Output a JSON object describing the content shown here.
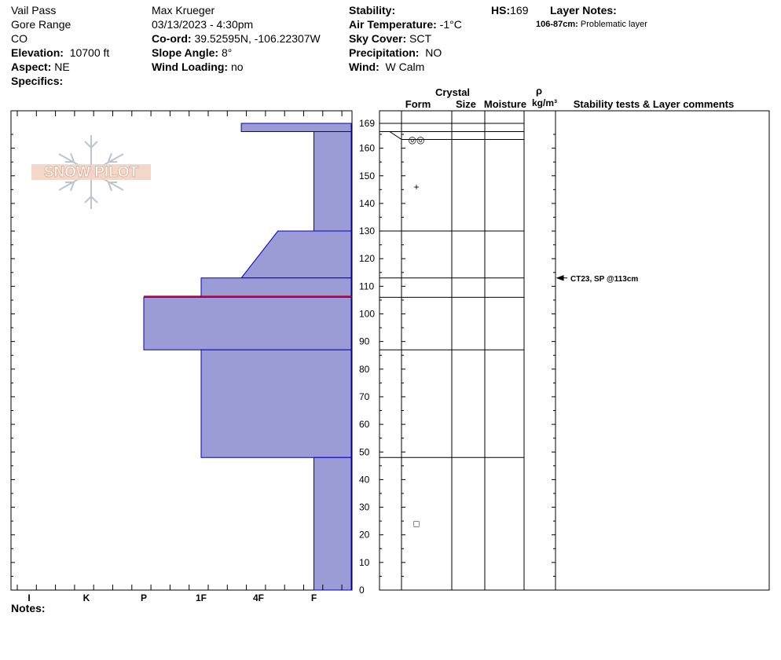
{
  "site": {
    "location": "Vail Pass",
    "range": "Gore Range",
    "state": "CO",
    "elevation_label": "Elevation:",
    "elevation": "10700 ft",
    "aspect_label": "Aspect:",
    "aspect": "NE",
    "specifics_label": "Specifics:"
  },
  "observer": {
    "name": "Max Krueger",
    "datetime": "03/13/2023 - 4:30pm",
    "coord_label": "Co-ord:",
    "coord": "39.52595N, -106.22307W",
    "slope_label": "Slope Angle:",
    "slope": "8°",
    "wind_loading_label": "Wind Loading:",
    "wind_loading": "no"
  },
  "conditions": {
    "stability_label": "Stability:",
    "air_temp_label": "Air Temperature:",
    "air_temp": "-1°C",
    "sky_label": "Sky Cover:",
    "sky": "SCT",
    "precip_label": "Precipitation:",
    "precip": "NO",
    "wind_label": "Wind:",
    "wind": "W Calm"
  },
  "hs": {
    "label": "HS:",
    "value": "169"
  },
  "layer_notes": {
    "label": "Layer Notes:",
    "range": "106-87cm:",
    "text": "Problematic layer"
  },
  "logo_text": "SNOW PILOT",
  "notes_label": "Notes:",
  "columns": {
    "crystal": "Crystal",
    "form": "Form",
    "size": "Size",
    "moisture": "Moisture",
    "rho": "ρ",
    "density_unit": "kg/m³",
    "stability": "Stability tests & Layer comments"
  },
  "colors": {
    "layer_fill": "#9b9bd6",
    "layer_stroke": "#0000cc",
    "marker_line": "#cc0000"
  },
  "chart_data": {
    "type": "bar",
    "height_ticks": [
      169,
      160,
      150,
      140,
      130,
      120,
      110,
      100,
      90,
      80,
      70,
      60,
      50,
      40,
      30,
      20,
      10,
      0
    ],
    "hardness_ticks": [
      "I",
      "K",
      "P",
      "1F",
      "4F",
      "F"
    ],
    "ylim": [
      0,
      169
    ],
    "layers": [
      {
        "top": 169,
        "bottom": 166,
        "hardness_top": 1.3,
        "hardness_bottom": 1.3
      },
      {
        "top": 166,
        "bottom": 130,
        "hardness_top": 0,
        "hardness_bottom": 0
      },
      {
        "top": 130,
        "bottom": 113,
        "hardness_top": 0.65,
        "hardness_bottom": 1.3
      },
      {
        "top": 113,
        "bottom": 106,
        "hardness_top": 2,
        "hardness_bottom": 2
      },
      {
        "top": 106,
        "bottom": 87,
        "hardness_top": 3,
        "hardness_bottom": 3
      },
      {
        "top": 87,
        "bottom": 48,
        "hardness_top": 2,
        "hardness_bottom": 2
      },
      {
        "top": 48,
        "bottom": 0,
        "hardness_top": 0,
        "hardness_bottom": 0
      }
    ],
    "boundaries": [
      169,
      166,
      130,
      113,
      106,
      87,
      48
    ],
    "marked_boundary": 106,
    "crystal_forms": [
      {
        "height": 163,
        "symbol": "◎◎"
      },
      {
        "height": 146,
        "symbol": "+"
      },
      {
        "height": 24,
        "symbol": "□"
      }
    ],
    "stability_tests": [
      {
        "height": 113,
        "text": "CT23, SP @113cm"
      }
    ]
  }
}
